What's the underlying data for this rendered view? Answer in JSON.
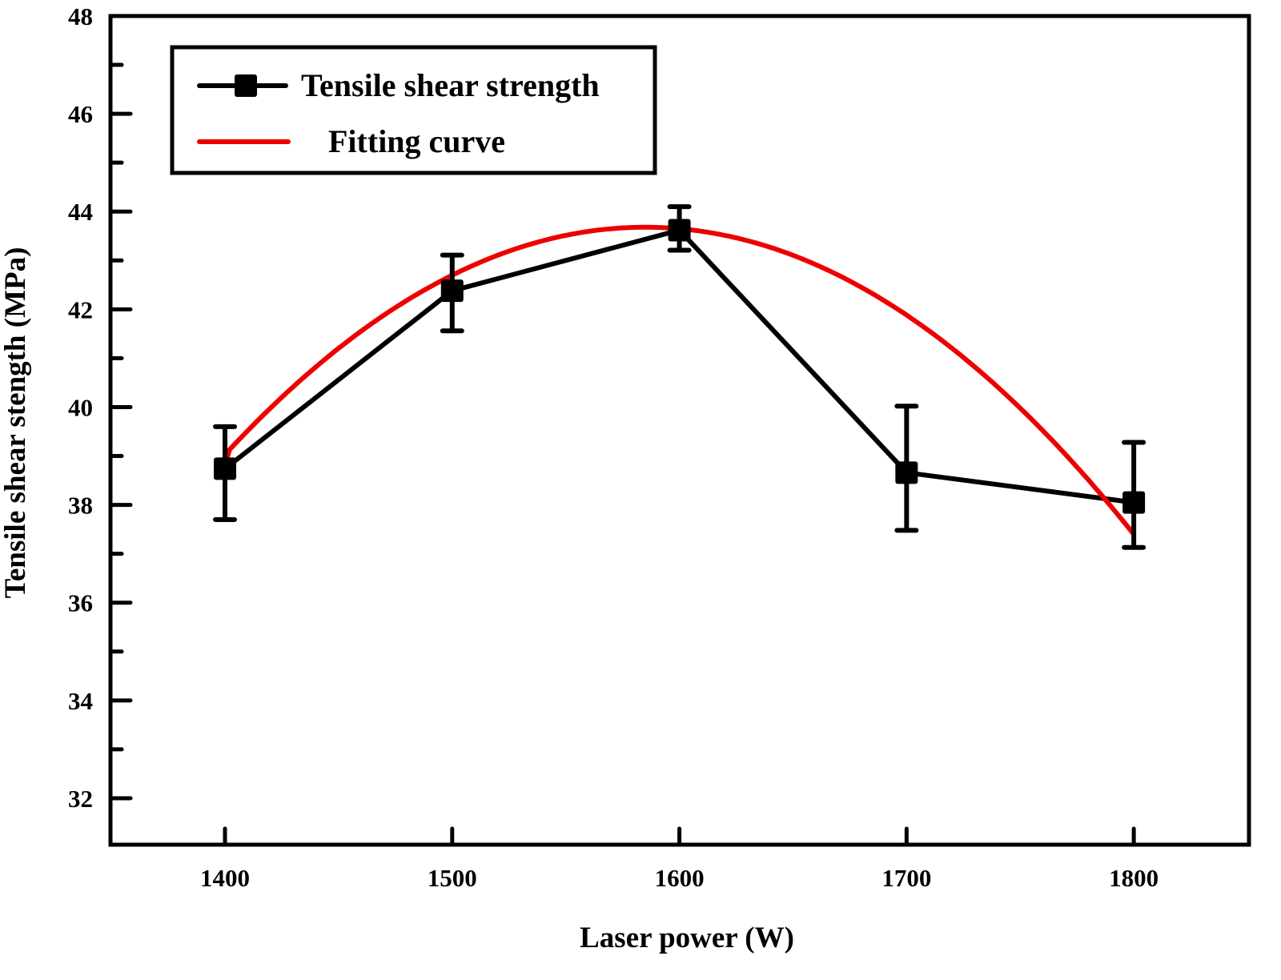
{
  "chart_data": {
    "type": "line",
    "title": "",
    "xlabel": "Laser power (W)",
    "ylabel": "Tensile shear stength (MPa)",
    "xlim": [
      1349.6,
      1850.7
    ],
    "ylim": [
      31.05,
      48
    ],
    "x_ticks": [
      1400,
      1500,
      1600,
      1700,
      1800
    ],
    "x_tick_labels": [
      "1400",
      "1500",
      "1600",
      "1700",
      "1800"
    ],
    "y_ticks": [
      32,
      34,
      36,
      38,
      40,
      42,
      44,
      46,
      48
    ],
    "y_tick_labels": [
      "32",
      "34",
      "36",
      "38",
      "40",
      "42",
      "44",
      "46",
      "48"
    ],
    "y_minor_step": 1,
    "grid": false,
    "legend": {
      "position": "top-left",
      "entries": [
        {
          "label": "Tensile shear strength",
          "series": "measured"
        },
        {
          "label": "Fitting curve",
          "series": "fit"
        }
      ]
    },
    "x": [
      1400,
      1500,
      1600,
      1700,
      1800
    ],
    "series": [
      {
        "name": "Tensile shear strength",
        "id": "measured",
        "color": "#000000",
        "marker": "square",
        "values": [
          38.74,
          42.38,
          43.62,
          38.66,
          38.05
        ],
        "error_upper": [
          39.6,
          43.11,
          44.1,
          40.02,
          39.28
        ],
        "error_lower": [
          37.7,
          41.56,
          43.21,
          37.48,
          37.13
        ]
      },
      {
        "name": "Fitting curve",
        "id": "fit",
        "color": "#ee0000",
        "kind": "quadratic",
        "vertex_x": 1585,
        "vertex_y": 43.68,
        "coefficient": -0.0001359,
        "x_range": [
          1400,
          1800
        ],
        "start_y": 38.8
      }
    ]
  }
}
